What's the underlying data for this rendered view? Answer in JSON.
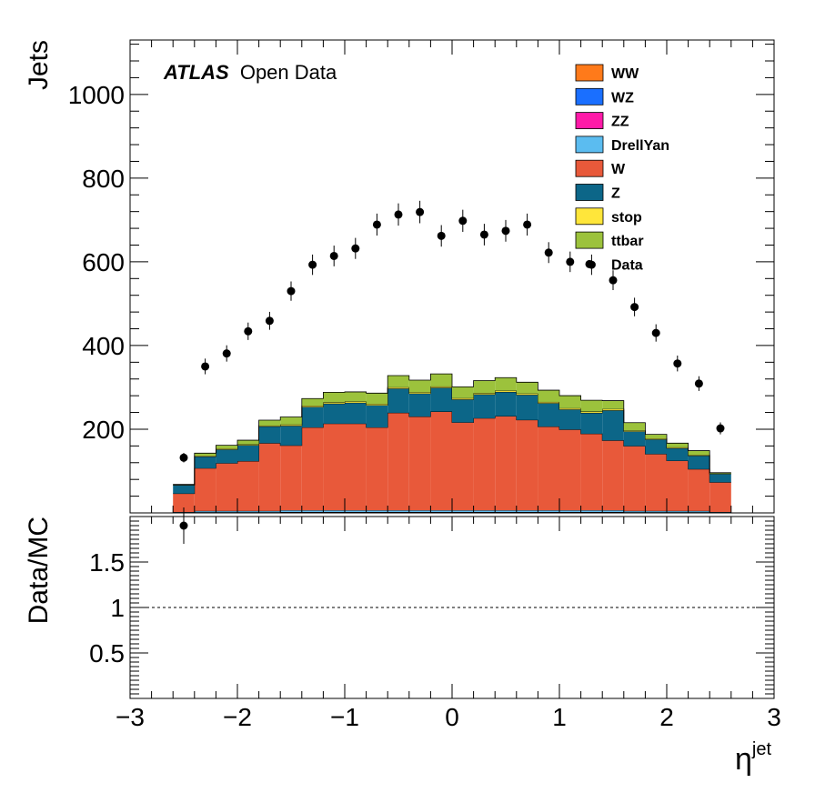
{
  "chart_data": {
    "type": "bar",
    "stacked": true,
    "annotation": {
      "atlas": "ATLAS",
      "open_data": "Open Data"
    },
    "xlabel": "η",
    "xlabel_sup": "jet",
    "ylabel": "Jets",
    "ratio_ylabel": "Data/MC",
    "xlim": [
      -3,
      3
    ],
    "ylim": [
      0,
      1130
    ],
    "ratio_ylim": [
      0,
      2
    ],
    "x_ticks": [
      -3,
      -2,
      -1,
      0,
      1,
      2,
      3
    ],
    "x_tick_labels": [
      "−3",
      "−2",
      "−1",
      "0",
      "1",
      "2",
      "3"
    ],
    "y_ticks": [
      200,
      400,
      600,
      800,
      1000
    ],
    "y_tick_labels": [
      "200",
      "400",
      "600",
      "800",
      "1000"
    ],
    "ratio_ticks": [
      0.5,
      1,
      1.5
    ],
    "ratio_tick_labels": [
      "0.5",
      "1",
      "1.5"
    ],
    "bin_edges": [
      -2.6,
      -2.4,
      -2.2,
      -2.0,
      -1.8,
      -1.6,
      -1.4,
      -1.2,
      -1.0,
      -0.8,
      -0.6,
      -0.4,
      -0.2,
      0.0,
      0.2,
      0.4,
      0.6,
      0.8,
      1.0,
      1.2,
      1.4,
      1.6,
      1.8,
      2.0,
      2.2,
      2.4,
      2.6
    ],
    "series": [
      {
        "name": "WW",
        "color": "#ff7a1a",
        "values": [
          0.5,
          1,
          1,
          1,
          1,
          1.5,
          1.5,
          1.5,
          1.5,
          1.5,
          1.5,
          1.5,
          1.5,
          1.5,
          1.5,
          1.5,
          1.5,
          1.5,
          1.5,
          1.5,
          1.5,
          1,
          1,
          1,
          1,
          0.5
        ]
      },
      {
        "name": "WZ",
        "color": "#1a6fff",
        "values": [
          0.5,
          0.5,
          0.5,
          0.5,
          0.5,
          0.5,
          0.5,
          0.5,
          0.5,
          0.5,
          0.5,
          0.5,
          0.5,
          0.5,
          0.5,
          0.5,
          0.5,
          0.5,
          0.5,
          0.5,
          0.5,
          0.5,
          0.5,
          0.5,
          0.5,
          0.5
        ]
      },
      {
        "name": "ZZ",
        "color": "#ff1aa8",
        "values": [
          0.2,
          0.2,
          0.2,
          0.2,
          0.2,
          0.2,
          0.2,
          0.2,
          0.2,
          0.2,
          0.2,
          0.2,
          0.2,
          0.2,
          0.2,
          0.2,
          0.2,
          0.2,
          0.2,
          0.2,
          0.2,
          0.2,
          0.2,
          0.2,
          0.2,
          0.2
        ]
      },
      {
        "name": "DrellYan",
        "color": "#5bbcf0",
        "values": [
          1,
          3,
          3,
          3,
          3,
          4,
          4,
          4,
          4,
          4,
          4,
          4,
          4,
          4,
          4,
          4,
          4,
          4,
          4,
          4,
          4,
          3,
          3,
          3,
          3,
          1
        ]
      },
      {
        "name": "W",
        "color": "#e8593a",
        "values": [
          44,
          102,
          114,
          119,
          162,
          155,
          198,
          207,
          207,
          198,
          233,
          224,
          236,
          210,
          220,
          225,
          216,
          200,
          193,
          183,
          167,
          155,
          136,
          120,
          100,
          71
        ]
      },
      {
        "name": "Z",
        "color": "#0c6688",
        "values": [
          20,
          28,
          33,
          38,
          40,
          47,
          49,
          48,
          50,
          53,
          58,
          55,
          57,
          55,
          57,
          58,
          60,
          56,
          48,
          50,
          72,
          35,
          35,
          30,
          32,
          20
        ]
      },
      {
        "name": "stop",
        "color": "#ffe63a",
        "values": [
          1,
          2,
          2,
          2,
          2,
          3,
          3,
          3,
          3,
          3,
          3,
          3,
          3,
          3,
          3,
          3,
          3,
          3,
          3,
          3,
          3,
          2,
          2,
          2,
          2,
          1
        ]
      },
      {
        "name": "ttbar",
        "color": "#9cc23c",
        "values": [
          1,
          6,
          8,
          10,
          13,
          18,
          17,
          24,
          23,
          26,
          28,
          29,
          30,
          27,
          30,
          31,
          27,
          28,
          30,
          27,
          20,
          19,
          10,
          10,
          10,
          2
        ]
      }
    ],
    "data": {
      "name": "Data",
      "x": [
        -2.5,
        -2.3,
        -2.1,
        -1.9,
        -1.7,
        -1.5,
        -1.3,
        -1.1,
        -0.9,
        -0.7,
        -0.5,
        -0.3,
        -0.1,
        0.1,
        0.3,
        0.5,
        0.7,
        0.9,
        1.1,
        1.3,
        1.5,
        1.7,
        1.9,
        2.1,
        2.3,
        2.5
      ],
      "y": [
        132,
        350,
        381,
        434,
        459,
        530,
        593,
        614,
        632,
        689,
        713,
        719,
        662,
        698,
        665,
        674,
        689,
        622,
        600,
        593,
        556,
        492,
        430,
        357,
        309,
        202
      ]
    },
    "ratio": {
      "x": [
        -2.5
      ],
      "y": [
        1.9
      ],
      "err": [
        0.2
      ]
    },
    "legend_position": "top-right"
  }
}
